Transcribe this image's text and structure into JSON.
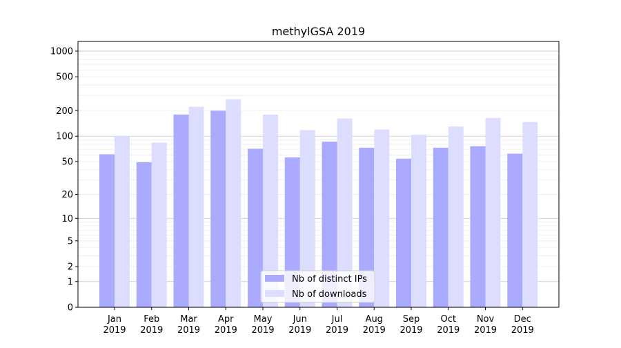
{
  "chart_data": {
    "type": "bar",
    "title": "methylGSA 2019",
    "xlabel": "",
    "ylabel": "",
    "y_scale": "log(1+y)",
    "ylim": [
      0,
      1300
    ],
    "y_ticks": [
      0,
      1,
      2,
      5,
      10,
      20,
      50,
      100,
      200,
      500,
      1000
    ],
    "y_tick_labels": [
      "0",
      "1",
      "2",
      "5",
      "10",
      "20",
      "50",
      "100",
      "200",
      "500",
      "1000"
    ],
    "categories": [
      "Jan",
      "Feb",
      "Mar",
      "Apr",
      "May",
      "Jun",
      "Jul",
      "Aug",
      "Sep",
      "Oct",
      "Nov",
      "Dec"
    ],
    "category_years": [
      "2019",
      "2019",
      "2019",
      "2019",
      "2019",
      "2019",
      "2019",
      "2019",
      "2019",
      "2019",
      "2019",
      "2019"
    ],
    "series": [
      {
        "name": "Nb of distinct IPs",
        "color": "#aaaaff",
        "values": [
          61,
          49,
          180,
          200,
          71,
          56,
          86,
          73,
          54,
          73,
          76,
          62
        ]
      },
      {
        "name": "Nb of downloads",
        "color": "#ddddff",
        "values": [
          101,
          84,
          222,
          272,
          180,
          118,
          162,
          120,
          104,
          130,
          164,
          147
        ]
      }
    ],
    "grid": "horizontal",
    "legend_position": "bottom-center"
  }
}
